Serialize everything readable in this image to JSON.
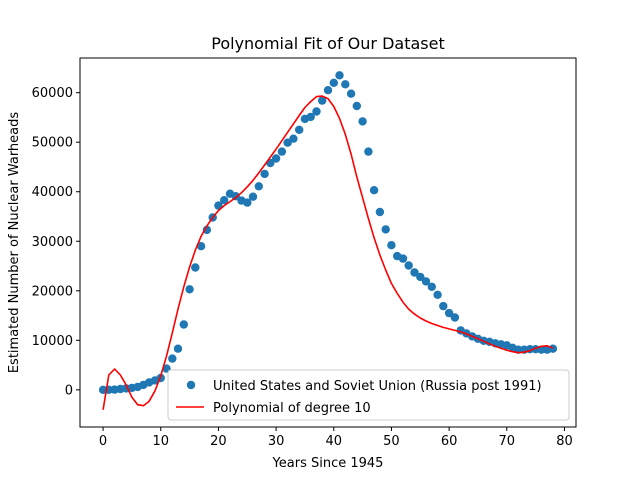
{
  "chart_data": {
    "type": "scatter",
    "title": "Polynomial Fit of Our Dataset",
    "xlabel": "Years Since 1945",
    "ylabel": "Estimated Number of Nuclear Warheads",
    "xlim": [
      -4,
      82
    ],
    "ylim": [
      -7500,
      67000
    ],
    "xticks": [
      0,
      10,
      20,
      30,
      40,
      50,
      60,
      70,
      80
    ],
    "yticks": [
      0,
      10000,
      20000,
      30000,
      40000,
      50000,
      60000
    ],
    "grid": false,
    "legend_position": "lower-right",
    "series": [
      {
        "name": "United States and Soviet Union (Russia post 1991)",
        "kind": "scatter",
        "color": "#1f77b4",
        "x": [
          0,
          1,
          2,
          3,
          4,
          5,
          6,
          7,
          8,
          9,
          10,
          11,
          12,
          13,
          14,
          15,
          16,
          17,
          18,
          19,
          20,
          21,
          22,
          23,
          24,
          25,
          26,
          27,
          28,
          29,
          30,
          31,
          32,
          33,
          34,
          35,
          36,
          37,
          38,
          39,
          40,
          41,
          42,
          43,
          44,
          45,
          46,
          47,
          48,
          49,
          50,
          51,
          52,
          53,
          54,
          55,
          56,
          57,
          58,
          59,
          60,
          61,
          62,
          63,
          64,
          65,
          66,
          67,
          68,
          69,
          70,
          71,
          72,
          73,
          74,
          75,
          76,
          77,
          78
        ],
        "y": [
          2,
          9,
          50,
          170,
          300,
          400,
          600,
          1000,
          1500,
          1900,
          2400,
          4300,
          6300,
          8300,
          13200,
          20300,
          24700,
          29000,
          32300,
          34800,
          37200,
          38300,
          39600,
          39100,
          38200,
          37800,
          39000,
          41100,
          43600,
          45800,
          46700,
          48100,
          49900,
          50700,
          52500,
          54700,
          55100,
          56200,
          58400,
          60500,
          62000,
          63500,
          61700,
          59800,
          57300,
          54200,
          48100,
          40300,
          35900,
          32400,
          29200,
          27000,
          26500,
          25100,
          23700,
          22800,
          21900,
          20800,
          19200,
          16900,
          15500,
          14600,
          12000,
          11400,
          10800,
          10300,
          9900,
          9700,
          9400,
          9200,
          9000,
          8500,
          8100,
          8100,
          8200,
          8200,
          8100,
          8100,
          8300
        ]
      },
      {
        "name": "Polynomial of degree 10",
        "kind": "line",
        "color": "#ff0000",
        "x": [
          0,
          1,
          2,
          3,
          4,
          5,
          6,
          7,
          8,
          9,
          10,
          11,
          12,
          13,
          14,
          15,
          16,
          17,
          18,
          19,
          20,
          21,
          22,
          23,
          24,
          25,
          26,
          27,
          28,
          29,
          30,
          31,
          32,
          33,
          34,
          35,
          36,
          37,
          38,
          39,
          40,
          41,
          42,
          43,
          44,
          45,
          46,
          47,
          48,
          49,
          50,
          51,
          52,
          53,
          54,
          55,
          56,
          57,
          58,
          59,
          60,
          61,
          62,
          63,
          64,
          65,
          66,
          67,
          68,
          69,
          70,
          71,
          72,
          73,
          74,
          75,
          76,
          77,
          78
        ],
        "y": [
          -4000,
          3000,
          4200,
          3000,
          1000,
          -1500,
          -3000,
          -3200,
          -2300,
          -200,
          2800,
          6800,
          11500,
          16300,
          20800,
          24800,
          28200,
          31000,
          33100,
          34800,
          36200,
          37200,
          38000,
          38800,
          39800,
          41000,
          42300,
          43800,
          45400,
          47000,
          48600,
          50300,
          52000,
          53700,
          55400,
          57000,
          58200,
          59200,
          59300,
          58800,
          57200,
          54800,
          51600,
          47600,
          43000,
          38800,
          34600,
          30700,
          27200,
          24200,
          21500,
          19500,
          17700,
          16300,
          15300,
          14500,
          13900,
          13400,
          13000,
          12600,
          12300,
          12000,
          11700,
          11300,
          10800,
          10300,
          9800,
          9300,
          8800,
          8400,
          8000,
          7700,
          7500,
          7600,
          7900,
          8400,
          8800,
          8900,
          8400
        ]
      }
    ]
  }
}
